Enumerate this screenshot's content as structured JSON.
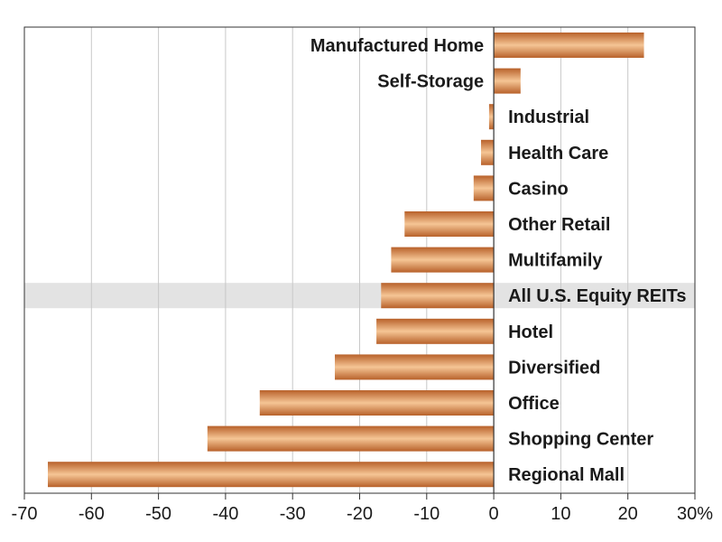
{
  "chart_data": {
    "type": "bar",
    "orientation": "horizontal",
    "categories": [
      "Manufactured Home",
      "Self-Storage",
      "Industrial",
      "Health Care",
      "Casino",
      "Other Retail",
      "Multifamily",
      "All U.S. Equity REITs",
      "Hotel",
      "Diversified",
      "Office",
      "Shopping Center",
      "Regional Mall"
    ],
    "values": [
      22.4,
      4.0,
      -0.7,
      -1.9,
      -3.0,
      -13.3,
      -15.3,
      -16.8,
      -17.5,
      -23.7,
      -34.9,
      -42.7,
      -66.5
    ],
    "highlighted_category": "All U.S. Equity REITs",
    "xlim": [
      -70,
      30
    ],
    "x_ticks": [
      -70,
      -60,
      -50,
      -40,
      -30,
      -20,
      -10,
      0,
      10,
      20,
      30
    ],
    "x_tick_labels": [
      "-70",
      "-60",
      "-50",
      "-40",
      "-30",
      "-20",
      "-10",
      "0",
      "10",
      "20",
      "30%"
    ],
    "grid": "vertical",
    "colors": {
      "bar_dark": "#b8612a",
      "bar_light": "#f5c595",
      "highlight_band": "#e3e3e3",
      "grid": "#c8c8c8",
      "axis": "#333333"
    },
    "title": "",
    "xlabel": "",
    "ylabel": ""
  }
}
